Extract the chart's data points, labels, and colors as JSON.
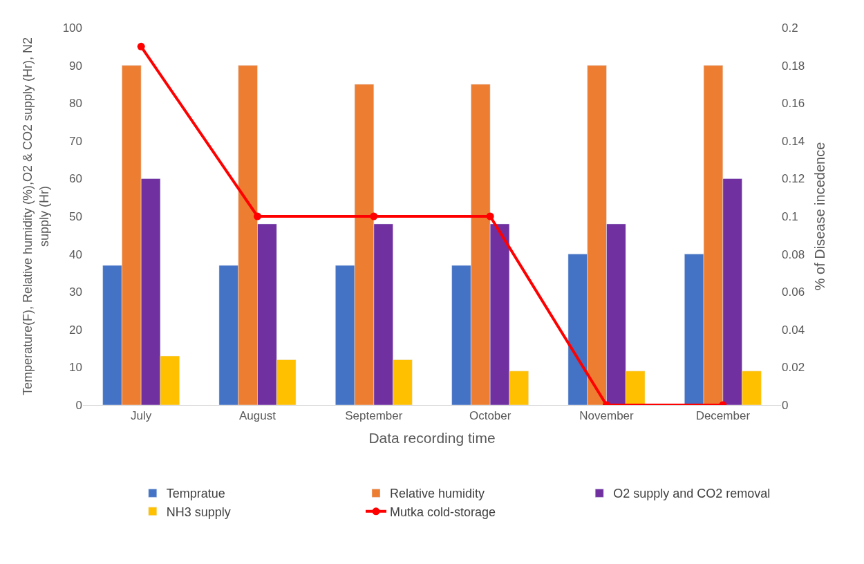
{
  "chart_data": {
    "type": "bar",
    "categories": [
      "July",
      "August",
      "September",
      "October",
      "November",
      "December"
    ],
    "xlabel": "Data recording time",
    "ylabel": "Temperature(F), Relative humidity (%),O2 & CO2 supply (Hr), N2 supply (Hr)",
    "y2label": "% of Disease incedence",
    "ylim": [
      0,
      100
    ],
    "yticks": [
      0,
      10,
      20,
      30,
      40,
      50,
      60,
      70,
      80,
      90,
      100
    ],
    "y2lim": [
      0,
      0.2
    ],
    "y2ticks": [
      0,
      0.02,
      0.04,
      0.06,
      0.08,
      0.1,
      0.12,
      0.14,
      0.16,
      0.18,
      0.2
    ],
    "legend": "bottom",
    "series": [
      {
        "name": "Tempratue",
        "color": "#4472c4",
        "values": [
          37,
          37,
          37,
          37,
          40,
          40
        ]
      },
      {
        "name": "Relative humidity",
        "color": "#ed7d31",
        "values": [
          90,
          90,
          85,
          85,
          90,
          90
        ]
      },
      {
        "name": "O2 supply and CO2 removal",
        "color": "#7030a0",
        "values": [
          60,
          48,
          48,
          48,
          48,
          60
        ]
      },
      {
        "name": "NH3 supply",
        "color": "#ffc000",
        "values": [
          13,
          12,
          12,
          9,
          9,
          9
        ]
      },
      {
        "name": "Mutka cold-storage",
        "color": "#ff0000",
        "type": "line",
        "axis": "y2",
        "marker": "circle",
        "line_style": "solid",
        "values": [
          0.19,
          0.1,
          0.1,
          0.1,
          0,
          0
        ]
      }
    ]
  }
}
